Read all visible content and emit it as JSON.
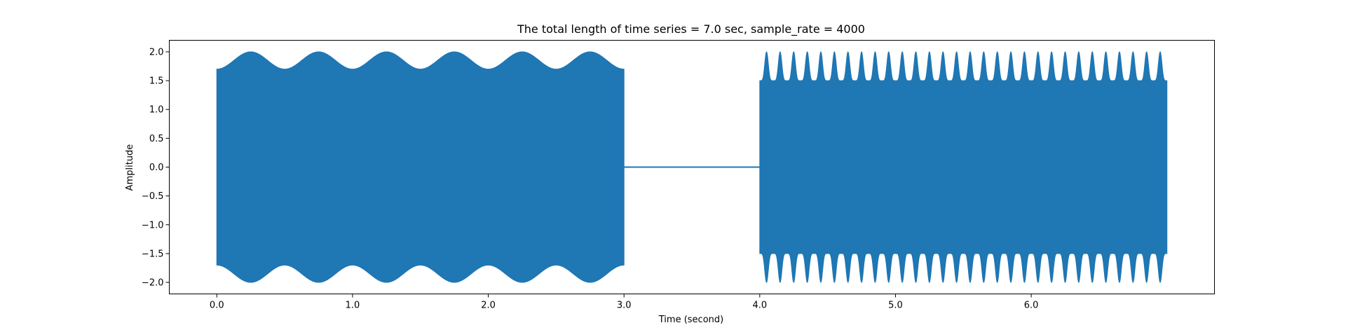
{
  "chart_data": {
    "type": "line",
    "title": "The total length of time series = 7.0 sec, sample_rate = 4000",
    "xlabel": "Time (second)",
    "ylabel": "Amplitude",
    "xlim": [
      -0.35,
      7.35
    ],
    "ylim": [
      -2.2,
      2.2
    ],
    "x_ticks": [
      0.0,
      1.0,
      2.0,
      3.0,
      4.0,
      5.0,
      6.0
    ],
    "x_tick_labels": [
      "0.0",
      "1.0",
      "2.0",
      "3.0",
      "4.0",
      "5.0",
      "6.0"
    ],
    "y_ticks": [
      2.0,
      1.5,
      1.0,
      0.5,
      0.0,
      -0.5,
      -1.0,
      -1.5,
      -2.0
    ],
    "y_tick_labels": [
      "2.0",
      "1.5",
      "1.0",
      "0.5",
      "0.0",
      "−0.5",
      "−1.0",
      "−1.5",
      "−2.0"
    ],
    "grid": false,
    "legend": false,
    "series_color": "#1f77b4",
    "segments": [
      {
        "t_start": 0.0,
        "t_end": 3.0,
        "description": "dense oscillation with a slowly modulated envelope between about ±1.7 and ±2.0",
        "envelope_min": 1.7,
        "envelope_max": 2.0,
        "envelope_period": 0.5
      },
      {
        "t_start": 3.0,
        "t_end": 4.0,
        "description": "flat line at zero",
        "value": 0.0
      },
      {
        "t_start": 4.0,
        "t_end": 7.0,
        "description": "dense oscillation with spiky peaks reaching about ±2.0 and base around ±1.5",
        "envelope_base": 1.5,
        "envelope_peak": 2.0,
        "peak_period": 0.1
      }
    ]
  }
}
